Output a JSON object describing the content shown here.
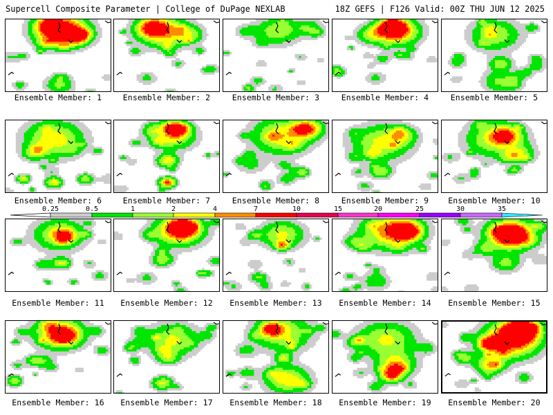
{
  "header": {
    "left_title": "Supercell Composite Parameter | College of DuPage NEXLAB",
    "right_title": "18Z GEFS | F126 Valid: 00Z THU JUN 12 2025"
  },
  "colorbar": {
    "ticks": [
      "0.25",
      "0.5",
      "1",
      "2",
      "4",
      "7",
      "10",
      "15",
      "20",
      "25",
      "30",
      "35"
    ],
    "colors": [
      "#cccccc",
      "#00e600",
      "#99ff33",
      "#ffff00",
      "#ff8c00",
      "#ff0000",
      "#e6004d",
      "#ff33cc",
      "#ff00ff",
      "#9900ff",
      "#cc66ff",
      "#33e6ff"
    ]
  },
  "members": [
    {
      "label": "Ensemble Member: 1",
      "selected": false,
      "seed": 1,
      "blobs": [
        [
          0.55,
          0.15,
          0.35,
          1.0
        ],
        [
          0.45,
          0.1,
          0.3,
          0.7
        ],
        [
          0.7,
          0.2,
          0.15,
          0.9
        ],
        [
          0.5,
          0.9,
          0.2,
          0.5
        ],
        [
          0.15,
          0.5,
          0.1,
          0.3
        ]
      ]
    },
    {
      "label": "Ensemble Member: 2",
      "selected": false,
      "seed": 2,
      "blobs": [
        [
          0.45,
          0.15,
          0.35,
          0.9
        ],
        [
          0.35,
          0.1,
          0.2,
          0.8
        ],
        [
          0.7,
          0.2,
          0.2,
          0.5
        ],
        [
          0.3,
          0.8,
          0.15,
          0.3
        ],
        [
          0.6,
          0.6,
          0.1,
          0.3
        ]
      ]
    },
    {
      "label": "Ensemble Member: 3",
      "selected": false,
      "seed": 3,
      "blobs": [
        [
          0.5,
          0.15,
          0.3,
          0.6
        ],
        [
          0.2,
          0.15,
          0.15,
          0.3
        ],
        [
          0.35,
          0.6,
          0.1,
          0.2
        ],
        [
          0.8,
          0.1,
          0.2,
          0.4
        ]
      ]
    },
    {
      "label": "Ensemble Member: 4",
      "selected": false,
      "seed": 4,
      "blobs": [
        [
          0.6,
          0.15,
          0.3,
          1.2
        ],
        [
          0.55,
          0.1,
          0.15,
          1.4
        ],
        [
          0.35,
          0.2,
          0.2,
          0.5
        ],
        [
          0.7,
          0.5,
          0.1,
          0.3
        ],
        [
          0.4,
          0.8,
          0.15,
          0.3
        ]
      ]
    },
    {
      "label": "Ensemble Member: 5",
      "selected": false,
      "seed": 5,
      "blobs": [
        [
          0.5,
          0.2,
          0.35,
          0.6
        ],
        [
          0.55,
          0.6,
          0.15,
          0.6
        ],
        [
          0.55,
          0.85,
          0.25,
          0.5
        ],
        [
          0.15,
          0.5,
          0.1,
          0.3
        ]
      ]
    },
    {
      "label": "Ensemble Member: 6",
      "selected": false,
      "seed": 6,
      "blobs": [
        [
          0.45,
          0.25,
          0.4,
          0.8
        ],
        [
          0.25,
          0.45,
          0.15,
          0.4
        ],
        [
          0.45,
          0.85,
          0.12,
          0.8
        ],
        [
          0.75,
          0.8,
          0.12,
          0.6
        ],
        [
          0.15,
          0.8,
          0.1,
          0.4
        ]
      ]
    },
    {
      "label": "Ensemble Member: 7",
      "selected": false,
      "seed": 7,
      "blobs": [
        [
          0.55,
          0.2,
          0.3,
          0.8
        ],
        [
          0.6,
          0.1,
          0.15,
          1.0
        ],
        [
          0.5,
          0.55,
          0.15,
          0.8
        ],
        [
          0.5,
          0.85,
          0.12,
          1.1
        ],
        [
          0.2,
          0.3,
          0.1,
          0.3
        ]
      ]
    },
    {
      "label": "Ensemble Member: 8",
      "selected": false,
      "seed": 8,
      "blobs": [
        [
          0.55,
          0.2,
          0.4,
          0.8
        ],
        [
          0.8,
          0.1,
          0.2,
          0.9
        ],
        [
          0.25,
          0.6,
          0.2,
          0.3
        ],
        [
          0.7,
          0.7,
          0.15,
          0.3
        ]
      ]
    },
    {
      "label": "Ensemble Member: 9",
      "selected": false,
      "seed": 9,
      "blobs": [
        [
          0.45,
          0.3,
          0.4,
          0.7
        ],
        [
          0.45,
          0.7,
          0.15,
          0.6
        ],
        [
          0.65,
          0.2,
          0.2,
          0.5
        ],
        [
          0.2,
          0.5,
          0.1,
          0.3
        ]
      ]
    },
    {
      "label": "Ensemble Member: 10",
      "selected": false,
      "seed": 10,
      "blobs": [
        [
          0.5,
          0.25,
          0.4,
          0.7
        ],
        [
          0.6,
          0.2,
          0.2,
          0.8
        ],
        [
          0.75,
          0.45,
          0.2,
          0.4
        ],
        [
          0.3,
          0.75,
          0.1,
          0.3
        ]
      ]
    },
    {
      "label": "Ensemble Member: 11",
      "selected": false,
      "seed": 11,
      "blobs": [
        [
          0.5,
          0.2,
          0.35,
          0.7
        ],
        [
          0.55,
          0.2,
          0.15,
          0.6
        ],
        [
          0.5,
          0.6,
          0.15,
          0.4
        ],
        [
          0.1,
          0.3,
          0.1,
          0.3
        ]
      ]
    },
    {
      "label": "Ensemble Member: 12",
      "selected": false,
      "seed": 12,
      "blobs": [
        [
          0.6,
          0.15,
          0.35,
          0.9
        ],
        [
          0.65,
          0.1,
          0.2,
          1.2
        ],
        [
          0.45,
          0.55,
          0.15,
          0.6
        ],
        [
          0.3,
          0.8,
          0.15,
          0.3
        ]
      ]
    },
    {
      "label": "Ensemble Member: 13",
      "selected": false,
      "seed": 13,
      "blobs": [
        [
          0.55,
          0.2,
          0.3,
          0.7
        ],
        [
          0.55,
          0.35,
          0.1,
          0.7
        ],
        [
          0.35,
          0.8,
          0.12,
          0.3
        ],
        [
          0.2,
          0.3,
          0.1,
          0.2
        ]
      ]
    },
    {
      "label": "Ensemble Member: 14",
      "selected": false,
      "seed": 14,
      "blobs": [
        [
          0.55,
          0.15,
          0.4,
          1.0
        ],
        [
          0.7,
          0.15,
          0.2,
          1.1
        ],
        [
          0.4,
          0.85,
          0.2,
          0.4
        ],
        [
          0.2,
          0.3,
          0.15,
          0.4
        ]
      ]
    },
    {
      "label": "Ensemble Member: 15",
      "selected": false,
      "seed": 15,
      "blobs": [
        [
          0.65,
          0.2,
          0.35,
          1.1
        ],
        [
          0.65,
          0.2,
          0.2,
          1.1
        ],
        [
          0.4,
          0.4,
          0.15,
          0.4
        ],
        [
          0.6,
          0.6,
          0.2,
          0.5
        ]
      ]
    },
    {
      "label": "Ensemble Member: 16",
      "selected": false,
      "seed": 16,
      "blobs": [
        [
          0.5,
          0.15,
          0.35,
          0.9
        ],
        [
          0.55,
          0.2,
          0.2,
          0.8
        ],
        [
          0.35,
          0.55,
          0.15,
          0.4
        ],
        [
          0.1,
          0.6,
          0.1,
          0.3
        ]
      ]
    },
    {
      "label": "Ensemble Member: 17",
      "selected": false,
      "seed": 17,
      "blobs": [
        [
          0.55,
          0.25,
          0.35,
          0.7
        ],
        [
          0.5,
          0.5,
          0.15,
          0.5
        ],
        [
          0.45,
          0.85,
          0.15,
          0.7
        ],
        [
          0.2,
          0.3,
          0.15,
          0.3
        ]
      ]
    },
    {
      "label": "Ensemble Member: 18",
      "selected": false,
      "seed": 18,
      "blobs": [
        [
          0.55,
          0.15,
          0.4,
          0.7
        ],
        [
          0.45,
          0.1,
          0.15,
          0.9
        ],
        [
          0.6,
          0.8,
          0.3,
          0.8
        ],
        [
          0.2,
          0.4,
          0.15,
          0.3
        ]
      ]
    },
    {
      "label": "Ensemble Member: 19",
      "selected": false,
      "seed": 19,
      "blobs": [
        [
          0.5,
          0.25,
          0.4,
          0.7
        ],
        [
          0.6,
          0.6,
          0.25,
          0.8
        ],
        [
          0.55,
          0.75,
          0.15,
          0.9
        ],
        [
          0.2,
          0.5,
          0.1,
          0.3
        ]
      ]
    },
    {
      "label": "Ensemble Member: 20",
      "selected": true,
      "seed": 20,
      "blobs": [
        [
          0.65,
          0.25,
          0.4,
          1.2
        ],
        [
          0.75,
          0.1,
          0.25,
          1.4
        ],
        [
          0.45,
          0.3,
          0.15,
          1.1
        ],
        [
          0.45,
          0.6,
          0.2,
          0.8
        ],
        [
          0.2,
          0.5,
          0.15,
          0.5
        ]
      ]
    }
  ]
}
